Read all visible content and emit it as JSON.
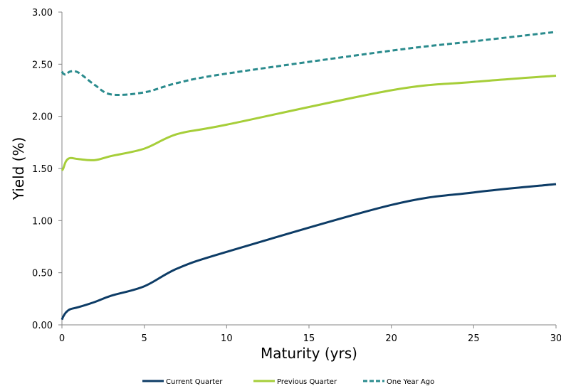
{
  "chart_data": {
    "type": "line",
    "xlabel": "Maturity (yrs)",
    "ylabel": "Yield (%)",
    "xlim": [
      0,
      30
    ],
    "ylim": [
      0,
      3
    ],
    "x_ticks": [
      0,
      5,
      10,
      15,
      20,
      25,
      30
    ],
    "x_tick_labels": [
      "0",
      "5",
      "10",
      "15",
      "20",
      "25",
      "30"
    ],
    "y_ticks": [
      0,
      0.5,
      1,
      1.5,
      2,
      2.5,
      3
    ],
    "y_tick_labels": [
      "0.00",
      "0.50",
      "1.00",
      "1.50",
      "2.00",
      "2.50",
      "3.00"
    ],
    "grid": false,
    "legend_position": "bottom",
    "series": [
      {
        "name": "Current Quarter",
        "color": "#0d3c66",
        "style": "solid",
        "x": [
          0,
          0.08,
          0.25,
          0.5,
          1,
          2,
          3,
          5,
          7,
          10,
          20,
          25,
          30
        ],
        "y": [
          0.05,
          0.08,
          0.12,
          0.15,
          0.17,
          0.22,
          0.28,
          0.37,
          0.54,
          0.7,
          1.15,
          1.27,
          1.35
        ]
      },
      {
        "name": "Previous Quarter",
        "color": "#a6ce39",
        "style": "solid",
        "x": [
          0,
          0.08,
          0.25,
          0.5,
          1,
          2,
          3,
          5,
          7,
          10,
          20,
          25,
          30
        ],
        "y": [
          1.48,
          1.5,
          1.57,
          1.6,
          1.59,
          1.58,
          1.62,
          1.69,
          1.83,
          1.92,
          2.25,
          2.33,
          2.39
        ]
      },
      {
        "name": "One Year Ago",
        "color": "#2a8b8d",
        "style": "dashed",
        "x": [
          0,
          0.08,
          0.25,
          0.5,
          1,
          2,
          3,
          5,
          7,
          10,
          20,
          25,
          30
        ],
        "y": [
          2.43,
          2.41,
          2.4,
          2.43,
          2.42,
          2.3,
          2.21,
          2.23,
          2.32,
          2.41,
          2.63,
          2.72,
          2.81
        ]
      }
    ]
  }
}
